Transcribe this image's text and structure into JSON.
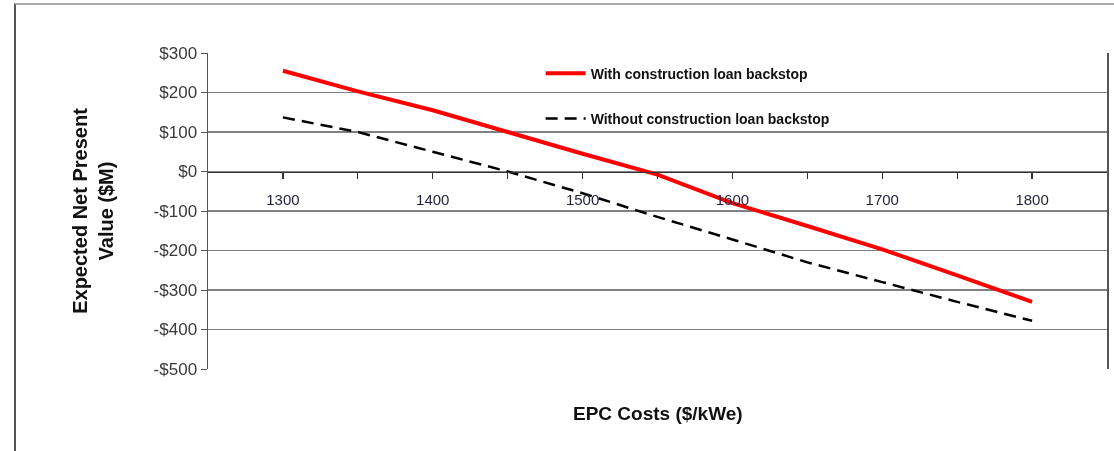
{
  "chart_data": {
    "type": "line",
    "xlabel": "EPC Costs ($/kWe)",
    "ylabel": "Expected Net Present Value ($M)",
    "x": [
      1300,
      1350,
      1400,
      1450,
      1500,
      1550,
      1600,
      1650,
      1700,
      1750,
      1800
    ],
    "series": [
      {
        "name": "With construction loan backstop",
        "color": "#ff0000",
        "line_style": "solid",
        "values": [
          255,
          203,
          155,
          100,
          45,
          -8,
          -80,
          -138,
          -197,
          -263,
          -330
        ]
      },
      {
        "name": "Without construction loan backstop",
        "color": "#000000",
        "line_style": "dashed",
        "values": [
          137,
          100,
          50,
          0,
          -55,
          -115,
          -172,
          -230,
          -280,
          -330,
          -378
        ]
      }
    ],
    "xlim": [
      1250,
      1850
    ],
    "xticks": [
      1300,
      {
        "value": 1350,
        "label": null
      },
      1400,
      {
        "value": 1450,
        "label": null
      },
      1500,
      {
        "value": 1550,
        "label": null
      },
      1600,
      {
        "value": 1650,
        "label": null
      },
      1700,
      {
        "value": 1750,
        "label": null
      },
      1800
    ],
    "ylim": [
      -500,
      300
    ],
    "yticks": [
      {
        "value": -500,
        "label": "-$500"
      },
      {
        "value": -400,
        "label": "-$400"
      },
      {
        "value": -300,
        "label": "-$300"
      },
      {
        "value": -200,
        "label": "-$200"
      },
      {
        "value": -100,
        "label": "-$100"
      },
      {
        "value": 0,
        "label": "$0"
      },
      {
        "value": 100,
        "label": "$100"
      },
      {
        "value": 200,
        "label": "$200"
      },
      {
        "value": 300,
        "label": "$300"
      }
    ],
    "grid": "y",
    "legend": "top right",
    "marker": "none"
  }
}
